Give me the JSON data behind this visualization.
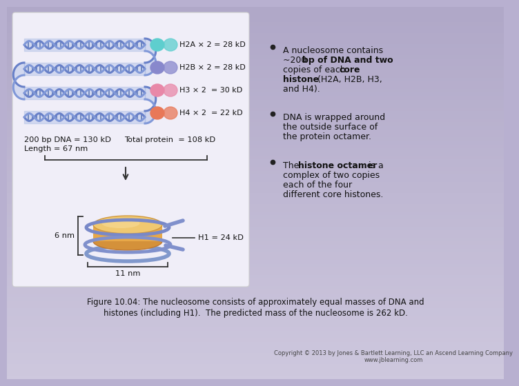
{
  "bg_gradient_top": "#b0a8c8",
  "bg_gradient_bottom": "#d0c8e0",
  "panel_bg": "#eeedf5",
  "histone_labels": [
    "H2A × 2 = 28 kD",
    "H2B × 2 = 28 kD",
    "H3 × 2  = 30 kD",
    "H4 × 2  = 22 kD"
  ],
  "histone_colors": [
    "#5ecece",
    "#8888cc",
    "#e888a8",
    "#e87858"
  ],
  "dna_text1": "200 bp DNA = 130 kD",
  "dna_text2": "Length = 67 nm",
  "protein_text": "Total protein  = 108 kD",
  "h1_label": "H1 = 24 kD",
  "dim_6nm": "6 nm",
  "dim_11nm": "11 nm",
  "caption_line1": "Figure 10.04: The nucleosome consists of approximately equal masses of DNA and",
  "caption_line2": "histones (including H1).  The predicted mass of the nucleosome is 262 kD.",
  "copyright_line1": "Copyright © 2013 by Jones & Bartlett Learning, LLC an Ascend Learning Company",
  "copyright_line2": "www.jblearning.com",
  "dna_strand_color": "#7890cc",
  "dna_strand_light": "#a0b4e0",
  "dna_cross_color": "#5060a0"
}
